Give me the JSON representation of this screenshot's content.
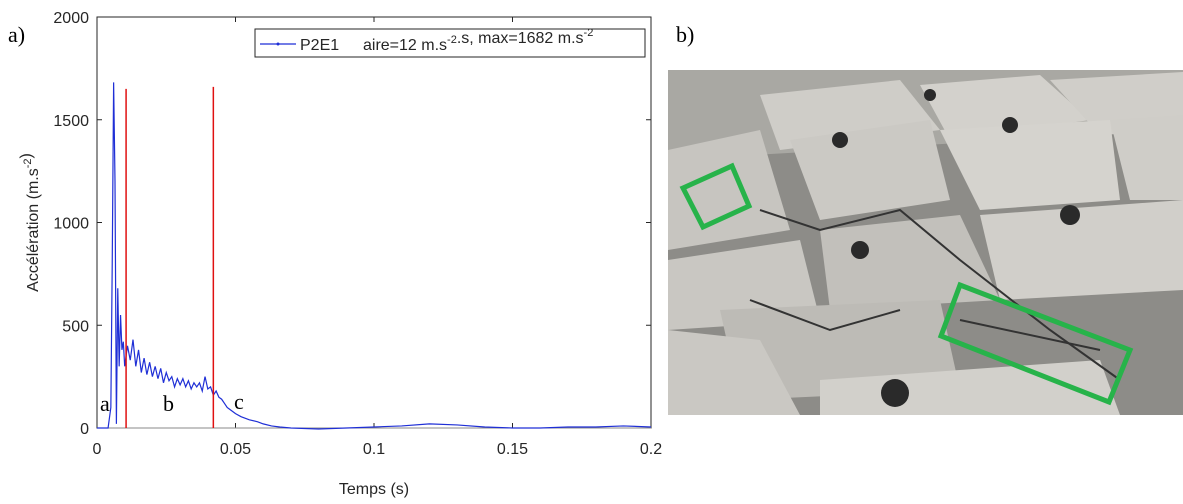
{
  "panel_labels": [
    "a)",
    "b)"
  ],
  "chart_data": {
    "type": "line",
    "xlabel": "Temps (s)",
    "ylabel": [
      {
        "text": "Accélération (m.s",
        "sup": "-2"
      },
      {
        "text": ")"
      }
    ],
    "xlim": [
      0,
      0.2
    ],
    "ylim": [
      0,
      2000
    ],
    "xticks": [
      0,
      0.05,
      0.1,
      0.15,
      0.2
    ],
    "yticks": [
      0,
      500,
      1000,
      1500,
      2000
    ],
    "x": [
      0,
      0.004,
      0.005,
      0.0055,
      0.006,
      0.0065,
      0.007,
      0.0075,
      0.008,
      0.0085,
      0.009,
      0.0095,
      0.01,
      0.011,
      0.012,
      0.013,
      0.014,
      0.015,
      0.016,
      0.017,
      0.018,
      0.019,
      0.02,
      0.021,
      0.022,
      0.023,
      0.024,
      0.025,
      0.026,
      0.027,
      0.028,
      0.029,
      0.03,
      0.031,
      0.032,
      0.033,
      0.034,
      0.035,
      0.036,
      0.037,
      0.038,
      0.039,
      0.04,
      0.041,
      0.042,
      0.043,
      0.044,
      0.045,
      0.046,
      0.047,
      0.048,
      0.05,
      0.052,
      0.055,
      0.058,
      0.06,
      0.063,
      0.066,
      0.07,
      0.08,
      0.09,
      0.1,
      0.11,
      0.12,
      0.13,
      0.14,
      0.15,
      0.16,
      0.17,
      0.18,
      0.19,
      0.2
    ],
    "series": [
      {
        "name": "P2E1",
        "color": "#1f2fd6",
        "values": [
          0,
          0,
          100,
          800,
          1682,
          1200,
          20,
          680,
          300,
          550,
          380,
          420,
          300,
          400,
          330,
          430,
          300,
          380,
          270,
          340,
          260,
          320,
          250,
          300,
          240,
          290,
          220,
          270,
          230,
          250,
          200,
          240,
          210,
          240,
          200,
          230,
          190,
          220,
          200,
          220,
          180,
          250,
          190,
          200,
          160,
          180,
          150,
          140,
          120,
          100,
          90,
          70,
          55,
          40,
          30,
          20,
          10,
          5,
          0,
          -5,
          0,
          5,
          10,
          20,
          15,
          5,
          0,
          0,
          5,
          5,
          10,
          5
        ]
      }
    ],
    "legend_note": [
      {
        "text": "aire=12 m.s",
        "sup": "-2"
      },
      {
        "text": ".s, max=1682 m.s",
        "sup": "-2"
      }
    ],
    "vlines": [
      {
        "x": 0.0105,
        "y": 1650,
        "color": "#e01010"
      },
      {
        "x": 0.042,
        "y": 1660,
        "color": "#e01010"
      }
    ],
    "annotations": [
      "a",
      "b",
      "c"
    ]
  }
}
